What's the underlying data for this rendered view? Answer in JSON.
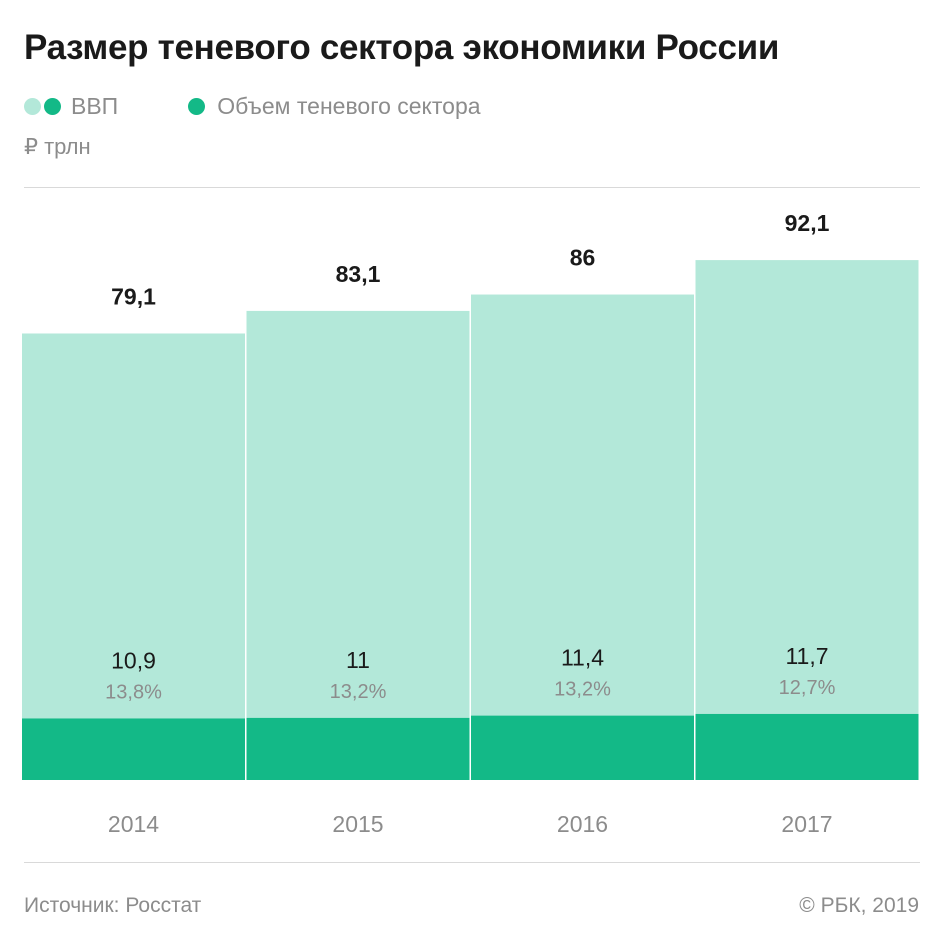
{
  "title": "Размер теневого сектора экономики России",
  "legend": {
    "gdp_label": "ВВП",
    "shadow_label": "Объем теневого сектора"
  },
  "unit": "₽ трлн",
  "source": "Источник: Росстат",
  "copyright": "© РБК, 2019",
  "colors": {
    "gdp": "#b3e8d9",
    "shadow": "#13b987",
    "muted_text": "#8c8c8c",
    "dark_text": "#1a1a1a",
    "rule": "#d9d9d9"
  },
  "chart_data": {
    "type": "bar",
    "categories": [
      "2014",
      "2015",
      "2016",
      "2017"
    ],
    "series": [
      {
        "name": "ВВП",
        "values": [
          79.1,
          83.1,
          86,
          92.1
        ],
        "labels": [
          "79,1",
          "83,1",
          "86",
          "92,1"
        ]
      },
      {
        "name": "Объем теневого сектора",
        "values": [
          10.9,
          11,
          11.4,
          11.7
        ],
        "labels": [
          "10,9",
          "11",
          "11,4",
          "11,7"
        ]
      }
    ],
    "shares": [
      "13,8%",
      "13,2%",
      "13,2%",
      "12,7%"
    ],
    "ylim": [
      0,
      100
    ],
    "grid": false,
    "legend_position": "top-left"
  }
}
